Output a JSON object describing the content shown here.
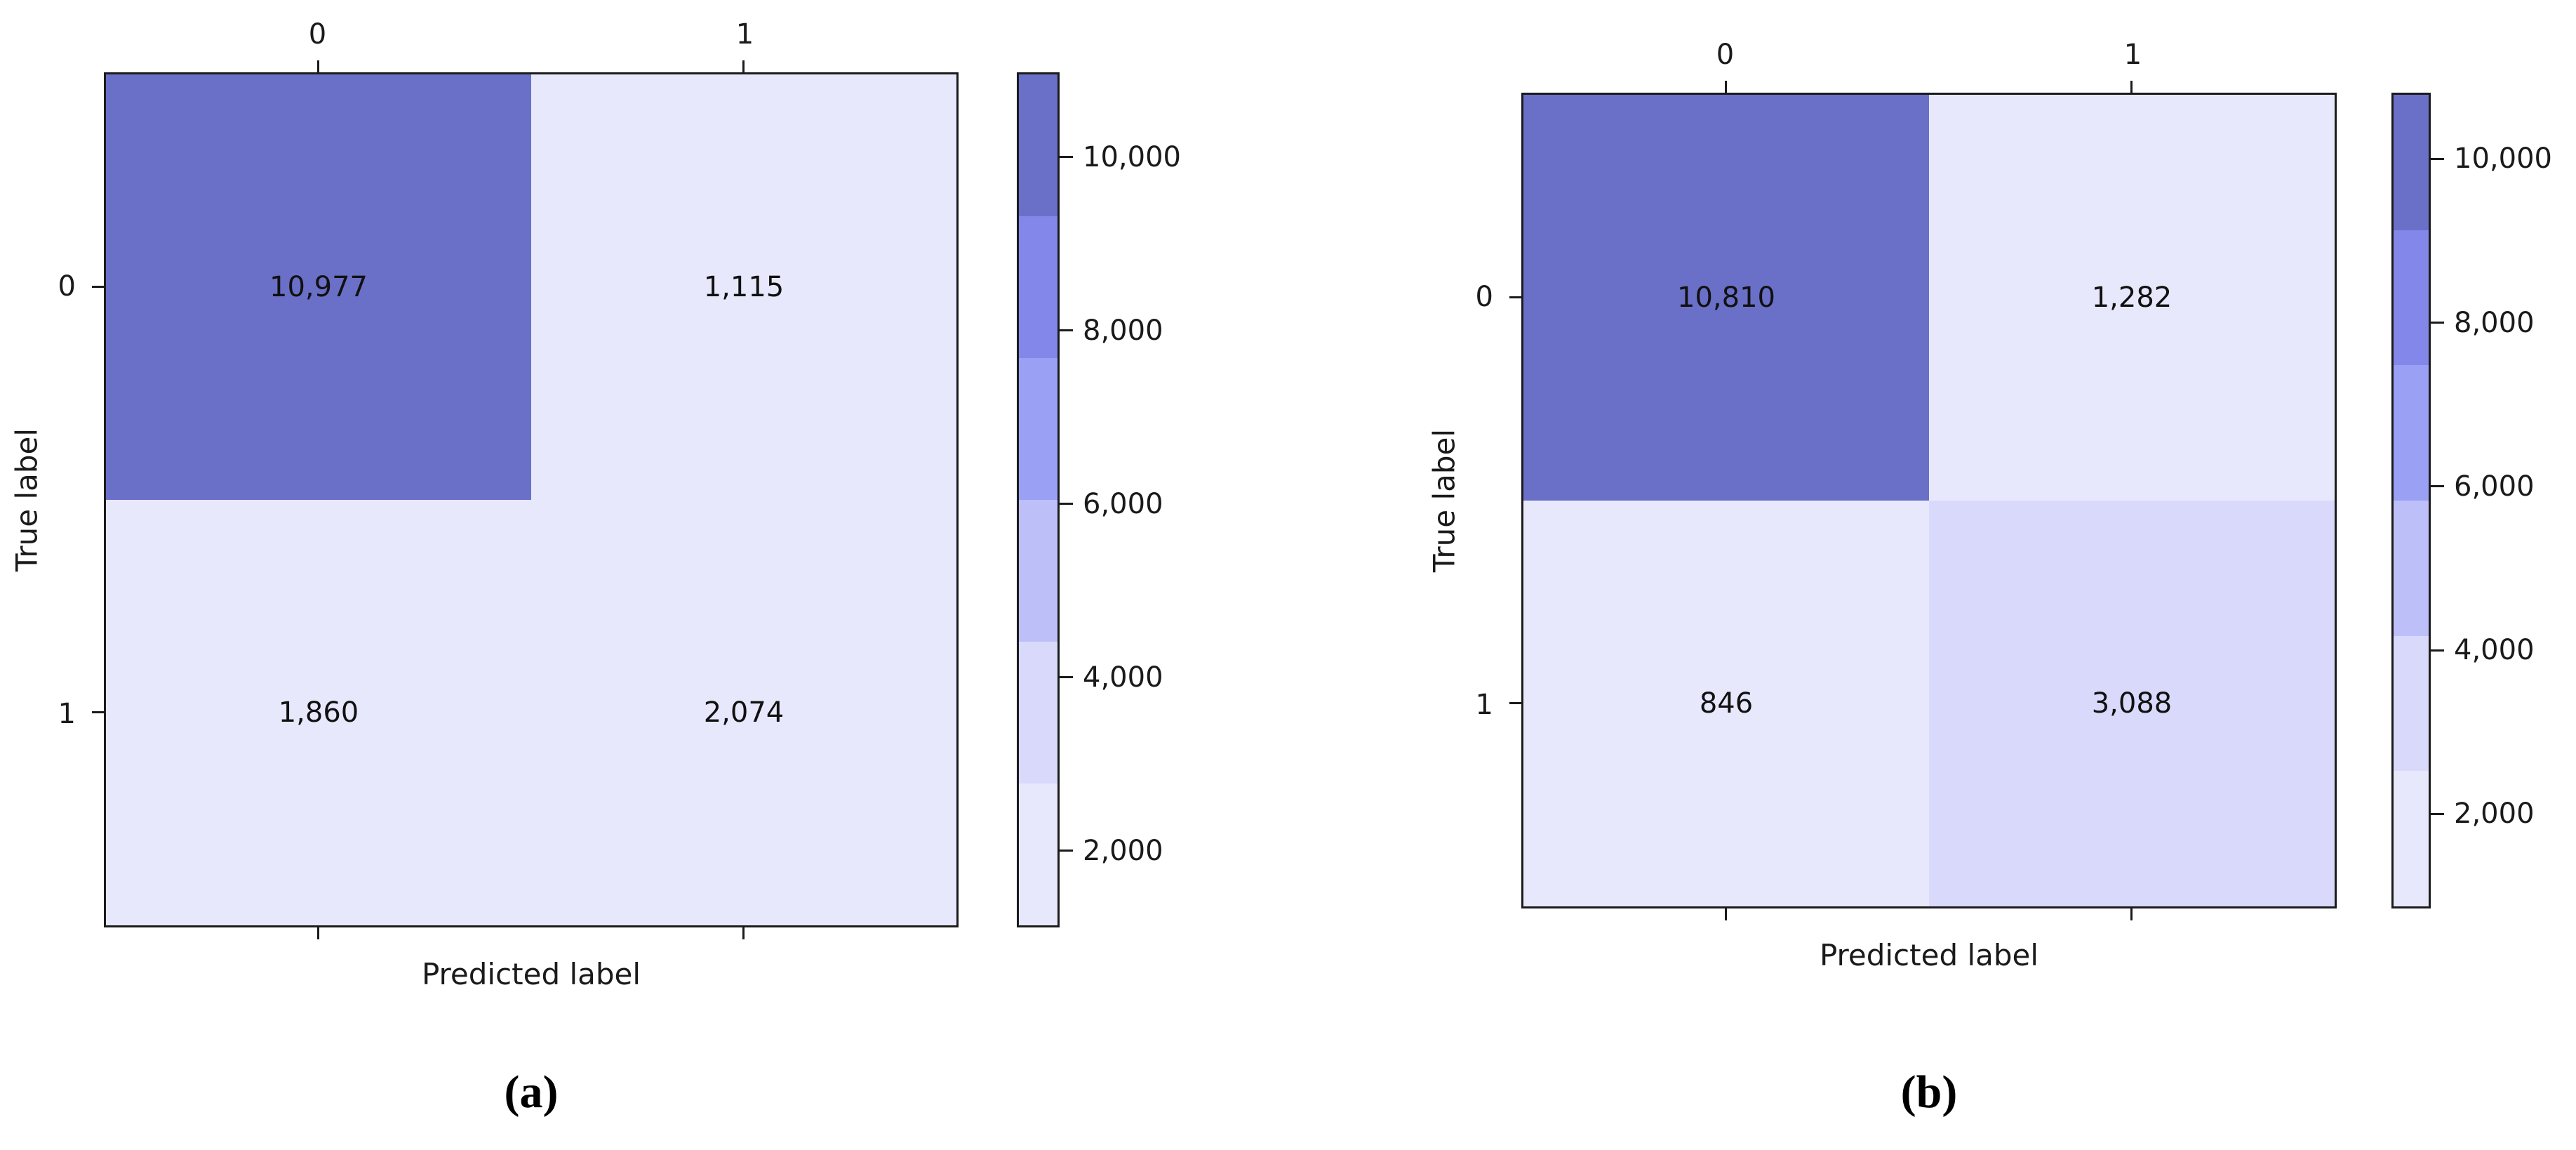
{
  "palette": {
    "bands_dark_to_light": [
      "#6a70c8",
      "#8287e9",
      "#9aa0f4",
      "#bdc0f8",
      "#d9dafb",
      "#e8e8fc"
    ],
    "border_color": "#1b1b1b",
    "text_color": "#1a1a1a",
    "background": "#ffffff"
  },
  "chart_data": [
    {
      "type": "heatmap",
      "subtype": "confusion-matrix",
      "caption": "(a)",
      "xlabel": "Predicted label",
      "ylabel": "True label",
      "x_tick_labels": [
        "0",
        "1"
      ],
      "y_tick_labels": [
        "0",
        "1"
      ],
      "matrix": [
        [
          10977,
          1115
        ],
        [
          1860,
          2074
        ]
      ],
      "cell_labels": [
        [
          "10,977",
          "1,115"
        ],
        [
          "1,860",
          "2,074"
        ]
      ],
      "vmin": 1115,
      "vmax": 10977,
      "n_color_bands": 6,
      "colorbar_ticks": [
        10000,
        8000,
        6000,
        4000,
        2000
      ],
      "colorbar_tick_labels": [
        "10,000",
        "8,000",
        "6,000",
        "4,000",
        "2,000"
      ],
      "legend_position": "right-colorbar",
      "grid": false
    },
    {
      "type": "heatmap",
      "subtype": "confusion-matrix",
      "caption": "(b)",
      "xlabel": "Predicted label",
      "ylabel": "True label",
      "x_tick_labels": [
        "0",
        "1"
      ],
      "y_tick_labels": [
        "0",
        "1"
      ],
      "matrix": [
        [
          10810,
          1282
        ],
        [
          846,
          3088
        ]
      ],
      "cell_labels": [
        [
          "10,810",
          "1,282"
        ],
        [
          "846",
          "3,088"
        ]
      ],
      "vmin": 846,
      "vmax": 10810,
      "n_color_bands": 6,
      "colorbar_ticks": [
        10000,
        8000,
        6000,
        4000,
        2000
      ],
      "colorbar_tick_labels": [
        "10,000",
        "8,000",
        "6,000",
        "4,000",
        "2,000"
      ],
      "legend_position": "right-colorbar",
      "grid": false
    }
  ]
}
